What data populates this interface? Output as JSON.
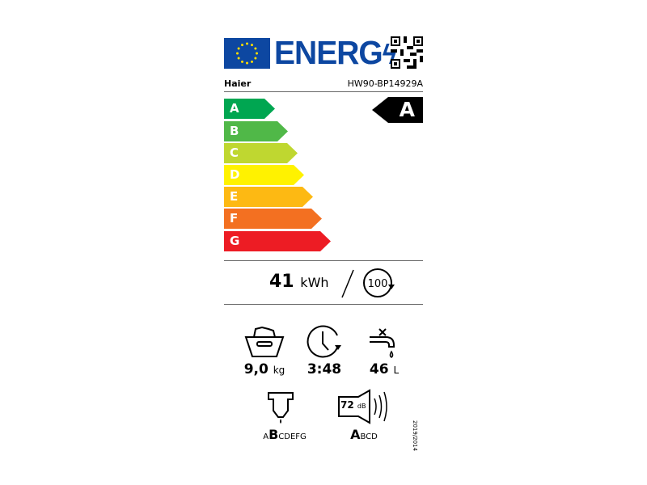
{
  "header": {
    "title": "ENERG",
    "brand": "Haier",
    "model": "HW90-BP14929A"
  },
  "scale": [
    {
      "letter": "A",
      "color": "#00a651"
    },
    {
      "letter": "B",
      "color": "#50b848"
    },
    {
      "letter": "C",
      "color": "#bfd730"
    },
    {
      "letter": "D",
      "color": "#fff200"
    },
    {
      "letter": "E",
      "color": "#fdb913"
    },
    {
      "letter": "F",
      "color": "#f37021"
    },
    {
      "letter": "G",
      "color": "#ed1c24"
    }
  ],
  "rating": "A",
  "energy": {
    "value": "41",
    "unit": "kWh",
    "cycles": "100"
  },
  "specs": {
    "capacity": {
      "value": "9,0",
      "unit": "kg"
    },
    "duration": {
      "value": "3:48"
    },
    "water": {
      "value": "46",
      "unit": "L"
    }
  },
  "spin": {
    "pre": "A",
    "class": "B",
    "post": "CDEFG"
  },
  "noise": {
    "value": "72",
    "unit": "dB",
    "class": "A",
    "post": "BCD"
  },
  "regulation": "2019/2014"
}
